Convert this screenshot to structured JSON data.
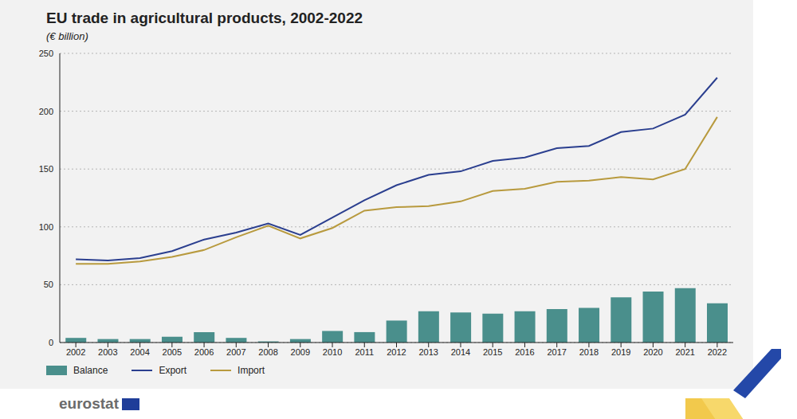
{
  "chart_data": {
    "type": "combo",
    "title": "EU trade in agricultural products, 2002-2022",
    "subtitle": "(€ billion)",
    "source": "eurostat",
    "categories": [
      "2002",
      "2003",
      "2004",
      "2005",
      "2006",
      "2007",
      "2008",
      "2009",
      "2010",
      "2011",
      "2012",
      "2013",
      "2014",
      "2015",
      "2016",
      "2017",
      "2018",
      "2019",
      "2020",
      "2021",
      "2022"
    ],
    "series": [
      {
        "name": "Balance",
        "type": "bar",
        "color": "#4a8f8c",
        "values": [
          4,
          3,
          3,
          5,
          9,
          4,
          1,
          3,
          10,
          9,
          19,
          27,
          26,
          25,
          27,
          29,
          30,
          39,
          44,
          47,
          34
        ]
      },
      {
        "name": "Export",
        "type": "line",
        "color": "#2b3f8f",
        "values": [
          72,
          71,
          73,
          79,
          89,
          95,
          103,
          93,
          108,
          123,
          136,
          145,
          148,
          157,
          160,
          168,
          170,
          182,
          185,
          197,
          229
        ]
      },
      {
        "name": "Import",
        "type": "line",
        "color": "#b89a3e",
        "values": [
          68,
          68,
          70,
          74,
          80,
          91,
          101,
          90,
          99,
          114,
          117,
          118,
          122,
          131,
          133,
          139,
          140,
          143,
          141,
          150,
          195
        ]
      }
    ],
    "ylim": [
      0,
      250
    ],
    "yticks": [
      0,
      50,
      100,
      150,
      200,
      250
    ],
    "grid": true,
    "legend": "bottom left"
  }
}
